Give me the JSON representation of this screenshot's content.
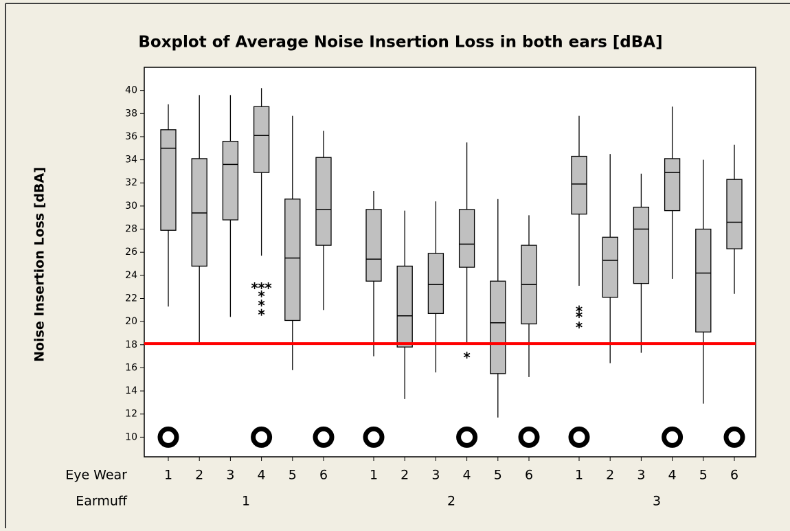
{
  "chart_data": {
    "type": "boxplot",
    "title": "Boxplot of Average Noise Insertion Loss in both ears [dBA]",
    "ylabel": "Noise Insertion Loss [dBA]",
    "ylim": [
      8.3,
      42
    ],
    "yticks": [
      10,
      12,
      14,
      16,
      18,
      20,
      22,
      24,
      26,
      28,
      30,
      32,
      34,
      36,
      38,
      40
    ],
    "x_rows": [
      {
        "name": "Eye Wear",
        "levels": [
          "1",
          "2",
          "3",
          "4",
          "5",
          "6",
          "1",
          "2",
          "3",
          "4",
          "5",
          "6",
          "1",
          "2",
          "3",
          "4",
          "5",
          "6"
        ]
      },
      {
        "name": "Earmuff",
        "levels": [
          "1",
          "2",
          "3"
        ]
      }
    ],
    "box_color": "#c0c0c0",
    "boxes": [
      {
        "whisker_low": 21.3,
        "q1": 27.9,
        "median": 35.0,
        "q3": 36.6,
        "whisker_high": 38.8,
        "outliers": []
      },
      {
        "whisker_low": 18.2,
        "q1": 24.8,
        "median": 29.4,
        "q3": 34.1,
        "whisker_high": 39.6,
        "outliers": []
      },
      {
        "whisker_low": 20.4,
        "q1": 28.8,
        "median": 33.6,
        "q3": 35.6,
        "whisker_high": 39.6,
        "outliers": []
      },
      {
        "whisker_low": 25.7,
        "q1": 32.9,
        "median": 36.1,
        "q3": 38.6,
        "whisker_high": 40.2,
        "outliers": [
          23.1,
          23.1,
          23.1,
          22.4,
          21.6,
          20.8
        ]
      },
      {
        "whisker_low": 15.8,
        "q1": 20.1,
        "median": 25.5,
        "q3": 30.6,
        "whisker_high": 37.8,
        "outliers": []
      },
      {
        "whisker_low": 21.0,
        "q1": 26.6,
        "median": 29.7,
        "q3": 34.2,
        "whisker_high": 36.5,
        "outliers": []
      },
      {
        "whisker_low": 17.0,
        "q1": 23.5,
        "median": 25.4,
        "q3": 29.7,
        "whisker_high": 31.3,
        "outliers": []
      },
      {
        "whisker_low": 13.3,
        "q1": 17.8,
        "median": 20.5,
        "q3": 24.8,
        "whisker_high": 29.6,
        "outliers": []
      },
      {
        "whisker_low": 15.6,
        "q1": 20.7,
        "median": 23.2,
        "q3": 25.9,
        "whisker_high": 30.4,
        "outliers": []
      },
      {
        "whisker_low": 18.0,
        "q1": 24.7,
        "median": 26.7,
        "q3": 29.7,
        "whisker_high": 35.5,
        "outliers": [
          17.1
        ]
      },
      {
        "whisker_low": 11.7,
        "q1": 15.5,
        "median": 19.9,
        "q3": 23.5,
        "whisker_high": 30.6,
        "outliers": []
      },
      {
        "whisker_low": 15.2,
        "q1": 19.8,
        "median": 23.2,
        "q3": 26.6,
        "whisker_high": 29.2,
        "outliers": []
      },
      {
        "whisker_low": 23.1,
        "q1": 29.3,
        "median": 31.9,
        "q3": 34.3,
        "whisker_high": 37.8,
        "outliers": [
          21.1,
          20.6,
          19.7
        ]
      },
      {
        "whisker_low": 16.4,
        "q1": 22.1,
        "median": 25.3,
        "q3": 27.3,
        "whisker_high": 34.5,
        "outliers": []
      },
      {
        "whisker_low": 17.3,
        "q1": 23.3,
        "median": 28.0,
        "q3": 29.9,
        "whisker_high": 32.8,
        "outliers": []
      },
      {
        "whisker_low": 23.7,
        "q1": 29.6,
        "median": 32.9,
        "q3": 34.1,
        "whisker_high": 38.6,
        "outliers": []
      },
      {
        "whisker_low": 12.9,
        "q1": 19.1,
        "median": 24.2,
        "q3": 28.0,
        "whisker_high": 34.0,
        "outliers": []
      },
      {
        "whisker_low": 22.4,
        "q1": 26.3,
        "median": 28.6,
        "q3": 32.3,
        "whisker_high": 35.3,
        "outliers": []
      }
    ],
    "symbols": [
      10,
      null,
      null,
      10,
      null,
      10,
      10,
      null,
      null,
      10,
      null,
      10,
      10,
      null,
      null,
      10,
      null,
      10
    ],
    "reference_line": {
      "value": 18.1,
      "color": "#ff0000"
    }
  }
}
